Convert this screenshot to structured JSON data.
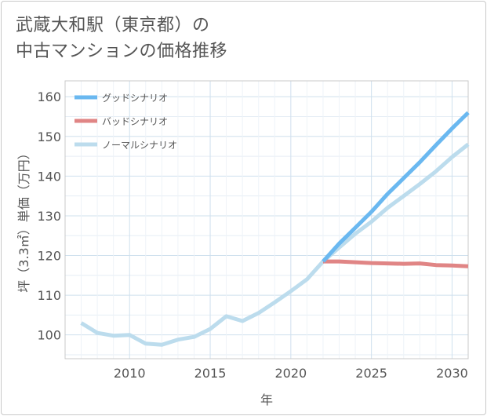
{
  "title_lines": [
    "武蔵大和駅（東京都）の",
    "中古マンションの価格推移"
  ],
  "colors": {
    "good": "#6ab8f0",
    "bad": "#e08585",
    "normal": "#bcdced"
  },
  "chart_data": {
    "type": "line",
    "title": "武蔵大和駅（東京都）の中古マンションの価格推移",
    "xlabel": "年",
    "ylabel": "坪（3.3㎡）単価（万円）",
    "xlim": [
      2006,
      2031
    ],
    "ylim": [
      94,
      164
    ],
    "xticks": [
      2010,
      2015,
      2020,
      2025,
      2030
    ],
    "yticks": [
      100,
      110,
      120,
      130,
      140,
      150,
      160
    ],
    "legend_position": "top-left",
    "series": [
      {
        "name": "グッドシナリオ",
        "color": "#6ab8f0",
        "x": [
          2022,
          2023,
          2024,
          2025,
          2026,
          2027,
          2028,
          2029,
          2030,
          2031
        ],
        "values": [
          118.5,
          123,
          127,
          131,
          135.5,
          139.5,
          143.5,
          147.8,
          152,
          156
        ]
      },
      {
        "name": "バッドシナリオ",
        "color": "#e08585",
        "x": [
          2022,
          2023,
          2024,
          2025,
          2026,
          2027,
          2028,
          2029,
          2030,
          2031
        ],
        "values": [
          118.5,
          118.5,
          118.3,
          118.1,
          118.0,
          117.9,
          118.0,
          117.6,
          117.5,
          117.3
        ]
      },
      {
        "name": "ノーマルシナリオ",
        "color": "#bcdced",
        "x": [
          2007,
          2008,
          2009,
          2010,
          2011,
          2012,
          2013,
          2014,
          2015,
          2016,
          2017,
          2018,
          2019,
          2020,
          2021,
          2022,
          2023,
          2024,
          2025,
          2026,
          2027,
          2028,
          2029,
          2030,
          2031
        ],
        "values": [
          103,
          100.5,
          99.8,
          100,
          97.8,
          97.5,
          98.8,
          99.5,
          101.5,
          104.7,
          103.5,
          105.5,
          108.2,
          111,
          114,
          118.5,
          122,
          125.5,
          128.5,
          132,
          135,
          138,
          141.2,
          144.8,
          148
        ]
      }
    ]
  }
}
